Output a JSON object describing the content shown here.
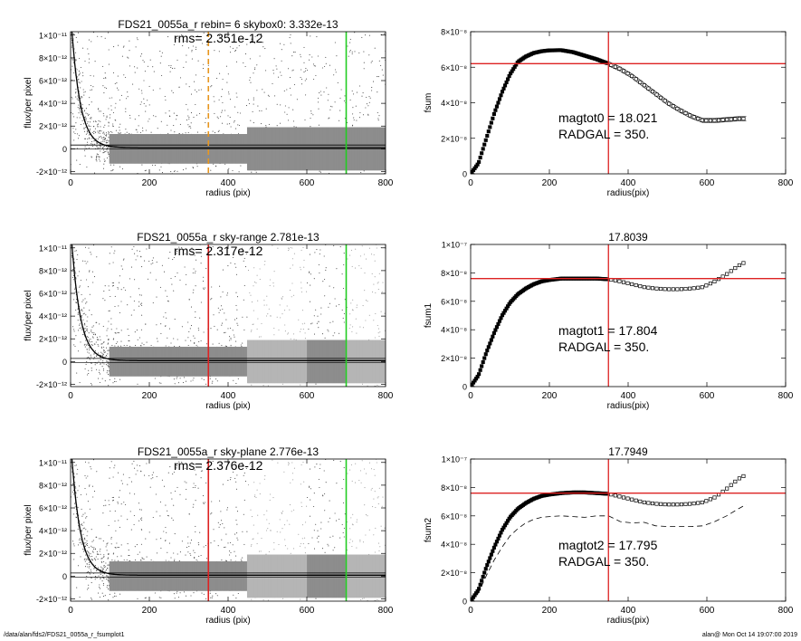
{
  "footer": {
    "path": "/data/alan/fds2/FDS21_0055a_r_fsumplot1",
    "stamp": "alan@  Mon Oct 14 19:07:00 2019"
  },
  "chart_data": [
    {
      "type": "scatter",
      "title": "FDS21_0055a_r rebin= 6    skybox0:  3.332e-13",
      "annotation": "rms= 2.351e-12",
      "xlabel": "radius (pix)",
      "ylabel": "flux/per pixel",
      "xlim": [
        0,
        800
      ],
      "ylim": [
        -2.2e-12,
        1.03e-11
      ],
      "xticks": [
        0,
        200,
        400,
        600,
        800
      ],
      "yticks": [
        -2e-12,
        0,
        2e-12,
        4e-12,
        6e-12,
        8e-12,
        1e-11
      ],
      "ytick_labels": [
        "-2×10⁻¹²",
        "0",
        "2×10⁻¹²",
        "4×10⁻¹²",
        "6×10⁻¹²",
        "8×10⁻¹²",
        "1×10⁻¹¹"
      ],
      "sky_bands": [],
      "sky_level": 3.332e-13,
      "rms": 2.351e-12,
      "vlines": [
        {
          "x": 350,
          "color": "#e8961e",
          "style": "dashed"
        },
        {
          "x": 700,
          "color": "#22cc22",
          "style": "solid"
        }
      ]
    },
    {
      "type": "line",
      "title": "",
      "xlabel": "radius(pix)",
      "ylabel": "fsum",
      "xlim": [
        0,
        800
      ],
      "ylim": [
        0,
        8e-08
      ],
      "xticks": [
        0,
        200,
        400,
        600,
        800
      ],
      "yticks": [
        0,
        2e-08,
        4e-08,
        6e-08,
        8e-08
      ],
      "ytick_labels": [
        "0",
        "2×10⁻⁸",
        "4×10⁻⁸",
        "6×10⁻⁸",
        "8×10⁻⁸"
      ],
      "curve": {
        "x": [
          0,
          20,
          40,
          60,
          80,
          100,
          120,
          140,
          160,
          180,
          200,
          230,
          260,
          290,
          320,
          350,
          380,
          410,
          440,
          470,
          500,
          530,
          560,
          590,
          620,
          650,
          680,
          700
        ],
        "y": [
          0,
          6e-09,
          2e-08,
          3.4e-08,
          4.6e-08,
          5.6e-08,
          6.3e-08,
          6.6e-08,
          6.8e-08,
          6.9e-08,
          6.95e-08,
          6.96e-08,
          6.85e-08,
          6.65e-08,
          6.45e-08,
          6.2e-08,
          5.9e-08,
          5.5e-08,
          5e-08,
          4.5e-08,
          4e-08,
          3.6e-08,
          3.25e-08,
          3e-08,
          3e-08,
          3.05e-08,
          3.1e-08,
          3.1e-08
        ]
      },
      "envelope": 1.2e-09,
      "dashed_curve": null,
      "hline": 6.2e-08,
      "vline": 350,
      "text_lines": [
        "magtot0 =  18.021",
        "RADGAL =    350."
      ],
      "text_pos": "center"
    },
    {
      "type": "scatter",
      "title": "FDS21_0055a_r sky-range  2.781e-13",
      "annotation": "rms= 2.317e-12",
      "xlabel": "radius (pix)",
      "ylabel": "flux/per pixel",
      "xlim": [
        0,
        800
      ],
      "ylim": [
        -2.2e-12,
        1.03e-11
      ],
      "xticks": [
        0,
        200,
        400,
        600,
        800
      ],
      "yticks": [
        -2e-12,
        0,
        2e-12,
        4e-12,
        6e-12,
        8e-12,
        1e-11
      ],
      "ytick_labels": [
        "-2×10⁻¹²",
        "0",
        "2×10⁻¹²",
        "4×10⁻¹²",
        "6×10⁻¹²",
        "8×10⁻¹²",
        "1×10⁻¹¹"
      ],
      "sky_bands": [
        [
          450,
          600
        ],
        [
          700,
          800
        ]
      ],
      "sky_level": 2.781e-13,
      "rms": 2.317e-12,
      "vlines": [
        {
          "x": 350,
          "color": "#dd2222",
          "style": "solid"
        },
        {
          "x": 700,
          "color": "#22cc22",
          "style": "solid"
        }
      ]
    },
    {
      "type": "line",
      "title": "17.8039",
      "xlabel": "radius(pix)",
      "ylabel": "fsum1",
      "xlim": [
        0,
        800
      ],
      "ylim": [
        0,
        1e-07
      ],
      "xticks": [
        0,
        200,
        400,
        600,
        800
      ],
      "yticks": [
        0,
        2e-08,
        4e-08,
        6e-08,
        8e-08,
        1e-07
      ],
      "ytick_labels": [
        "0",
        "2×10⁻⁸",
        "4×10⁻⁸",
        "6×10⁻⁸",
        "8×10⁻⁸",
        "1×10⁻⁷"
      ],
      "curve": {
        "x": [
          0,
          20,
          40,
          60,
          80,
          100,
          120,
          140,
          160,
          180,
          200,
          230,
          260,
          290,
          320,
          350,
          380,
          410,
          440,
          470,
          500,
          530,
          560,
          590,
          620,
          650,
          680,
          700
        ],
        "y": [
          0,
          8e-09,
          2.4e-08,
          3.8e-08,
          5e-08,
          5.9e-08,
          6.5e-08,
          6.9e-08,
          7.2e-08,
          7.4e-08,
          7.5e-08,
          7.6e-08,
          7.6e-08,
          7.6e-08,
          7.6e-08,
          7.55e-08,
          7.4e-08,
          7.2e-08,
          7e-08,
          6.9e-08,
          6.85e-08,
          6.85e-08,
          6.9e-08,
          7e-08,
          7.4e-08,
          7.9e-08,
          8.5e-08,
          8.8e-08
        ]
      },
      "envelope": 0,
      "dashed_curve": null,
      "hline": 7.6e-08,
      "vline": 350,
      "text_lines": [
        "magtot1 =  17.804",
        "RADGAL =    350."
      ],
      "text_pos": "center"
    },
    {
      "type": "scatter",
      "title": "FDS21_0055a_r sky-plane  2.776e-13",
      "annotation": "rms= 2.376e-12",
      "xlabel": "radius (pix)",
      "ylabel": "flux/per pixel",
      "xlim": [
        0,
        800
      ],
      "ylim": [
        -2.2e-12,
        1.03e-11
      ],
      "xticks": [
        0,
        200,
        400,
        600,
        800
      ],
      "yticks": [
        -2e-12,
        0,
        2e-12,
        4e-12,
        6e-12,
        8e-12,
        1e-11
      ],
      "ytick_labels": [
        "-2×10⁻¹²",
        "0",
        "2×10⁻¹²",
        "4×10⁻¹²",
        "6×10⁻¹²",
        "8×10⁻¹²",
        "1×10⁻¹¹"
      ],
      "sky_bands": [
        [
          450,
          600
        ],
        [
          700,
          800
        ]
      ],
      "sky_level": 2.776e-13,
      "rms": 2.376e-12,
      "vlines": [
        {
          "x": 350,
          "color": "#dd2222",
          "style": "solid"
        },
        {
          "x": 700,
          "color": "#22cc22",
          "style": "solid"
        }
      ]
    },
    {
      "type": "line",
      "title": "17.7949",
      "xlabel": "radius(pix)",
      "ylabel": "fsum2",
      "xlim": [
        0,
        800
      ],
      "ylim": [
        0,
        1e-07
      ],
      "xticks": [
        0,
        200,
        400,
        600,
        800
      ],
      "yticks": [
        0,
        2e-08,
        4e-08,
        6e-08,
        8e-08,
        1e-07
      ],
      "ytick_labels": [
        "0",
        "2×10⁻⁸",
        "4×10⁻⁸",
        "6×10⁻⁸",
        "8×10⁻⁸",
        "1×10⁻⁷"
      ],
      "curve": {
        "x": [
          0,
          20,
          40,
          60,
          80,
          100,
          120,
          140,
          160,
          180,
          200,
          230,
          260,
          290,
          320,
          350,
          380,
          410,
          440,
          470,
          500,
          530,
          560,
          590,
          620,
          650,
          680,
          700
        ],
        "y": [
          0,
          8e-09,
          2.4e-08,
          3.8e-08,
          5e-08,
          5.9e-08,
          6.5e-08,
          6.9e-08,
          7.2e-08,
          7.4e-08,
          7.5e-08,
          7.6e-08,
          7.65e-08,
          7.65e-08,
          7.6e-08,
          7.55e-08,
          7.35e-08,
          7.15e-08,
          6.95e-08,
          6.85e-08,
          6.8e-08,
          6.8e-08,
          6.85e-08,
          6.95e-08,
          7.3e-08,
          7.9e-08,
          8.6e-08,
          8.9e-08
        ]
      },
      "envelope": 0,
      "dashed_curve": {
        "x": [
          0,
          20,
          40,
          60,
          80,
          100,
          120,
          140,
          160,
          180,
          200,
          230,
          260,
          290,
          320,
          350,
          380,
          410,
          440,
          470,
          500,
          530,
          560,
          590,
          620,
          650,
          680,
          700
        ],
        "y": [
          0,
          6e-09,
          1.8e-08,
          2.9e-08,
          3.8e-08,
          4.6e-08,
          5.1e-08,
          5.5e-08,
          5.75e-08,
          5.9e-08,
          5.95e-08,
          6e-08,
          5.95e-08,
          5.9e-08,
          6e-08,
          6e-08,
          5.6e-08,
          5.5e-08,
          5.55e-08,
          5.3e-08,
          5.25e-08,
          5.25e-08,
          5.25e-08,
          5.3e-08,
          5.6e-08,
          6e-08,
          6.5e-08,
          6.8e-08
        ]
      },
      "hline": 7.6e-08,
      "vline": 350,
      "text_lines": [
        "magtot2 =  17.795",
        "RADGAL =    350."
      ],
      "text_pos": "center"
    }
  ]
}
